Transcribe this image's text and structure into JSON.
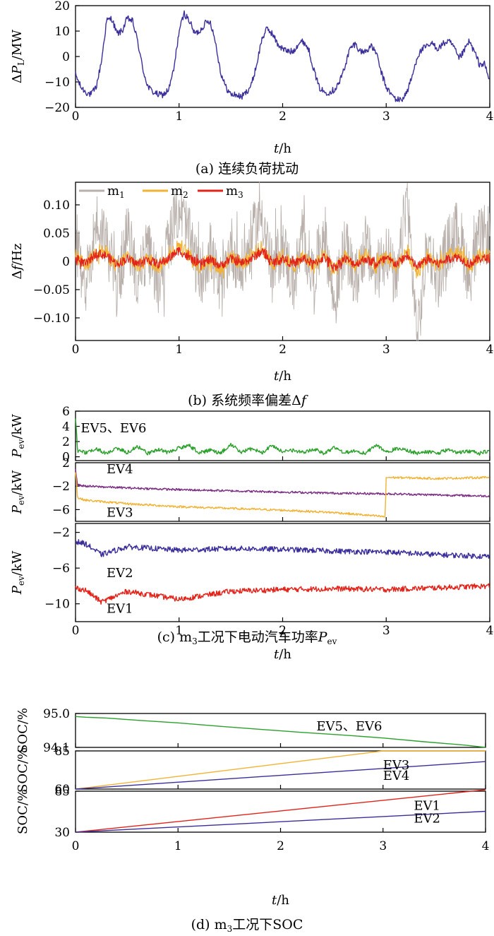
{
  "chart_data": [
    {
      "id": "a",
      "type": "line",
      "caption": "(a)  连续负荷扰动",
      "ylabel": "ΔP_L/MW",
      "xlabel": "t/h",
      "xlim": [
        0,
        4
      ],
      "ylim": [
        -20,
        20
      ],
      "xticks": [
        "0",
        "1",
        "2",
        "3",
        "4"
      ],
      "yticks": [
        "20",
        "10",
        "0",
        "−10",
        "−20"
      ],
      "series": [
        {
          "color": "#3a2f9a",
          "x": [
            0,
            0.05,
            0.1,
            0.15,
            0.2,
            0.25,
            0.3,
            0.35,
            0.4,
            0.45,
            0.5,
            0.55,
            0.6,
            0.65,
            0.7,
            0.75,
            0.8,
            0.85,
            0.9,
            0.95,
            1.0,
            1.05,
            1.1,
            1.15,
            1.2,
            1.25,
            1.3,
            1.35,
            1.4,
            1.45,
            1.5,
            1.55,
            1.6,
            1.65,
            1.7,
            1.75,
            1.8,
            1.85,
            1.9,
            1.95,
            2.0,
            2.05,
            2.1,
            2.15,
            2.2,
            2.25,
            2.3,
            2.35,
            2.4,
            2.45,
            2.5,
            2.55,
            2.6,
            2.65,
            2.7,
            2.75,
            2.8,
            2.85,
            2.9,
            2.95,
            3.0,
            3.05,
            3.1,
            3.15,
            3.2,
            3.25,
            3.3,
            3.35,
            3.4,
            3.45,
            3.5,
            3.55,
            3.6,
            3.65,
            3.7,
            3.75,
            3.8,
            3.85,
            3.9,
            3.95,
            4.0
          ],
          "y": [
            -7,
            -12,
            -14,
            -15,
            -12,
            -2,
            14,
            15,
            9,
            10,
            15,
            14,
            6,
            -5,
            -12,
            -14,
            -15,
            -15,
            -13,
            -5,
            10,
            17,
            14,
            9,
            10,
            13,
            14,
            6,
            -6,
            -12,
            -15,
            -15,
            -16,
            -14,
            -11,
            -3,
            7,
            11,
            9,
            5,
            3,
            2,
            2,
            5,
            6,
            3,
            -5,
            -12,
            -14,
            -14,
            -13,
            -10,
            -4,
            3,
            5,
            2,
            2,
            4,
            2,
            -6,
            -12,
            -15,
            -17,
            -17,
            -14,
            -8,
            0,
            3,
            4,
            5,
            3,
            5,
            6,
            4,
            -1,
            2,
            6,
            2,
            -3,
            -3,
            -10
          ]
        }
      ]
    },
    {
      "id": "b",
      "type": "line",
      "caption": "(b)  系统频率偏差Δf",
      "ylabel": "Δf/Hz",
      "xlabel": "t/h",
      "xlim": [
        0,
        4
      ],
      "ylim": [
        -0.14,
        0.14
      ],
      "xticks": [
        "0",
        "1",
        "2",
        "3",
        "4"
      ],
      "yticks": [
        "0.10",
        "0.05",
        "0",
        "−0.05",
        "−0.10"
      ],
      "legend": {
        "position": "top-left"
      },
      "series": [
        {
          "name": "m1",
          "name_main": "m",
          "name_sub": "1",
          "color": "#b9b0ab",
          "x": [
            0,
            0.1,
            0.2,
            0.3,
            0.4,
            0.5,
            0.6,
            0.7,
            0.8,
            0.9,
            1.0,
            1.1,
            1.2,
            1.3,
            1.4,
            1.5,
            1.6,
            1.7,
            1.8,
            1.9,
            2.0,
            2.1,
            2.2,
            2.3,
            2.4,
            2.5,
            2.6,
            2.7,
            2.8,
            2.9,
            3.0,
            3.1,
            3.2,
            3.3,
            3.4,
            3.5,
            3.6,
            3.7,
            3.8,
            3.9,
            4.0
          ],
          "y": [
            0.02,
            -0.04,
            0.07,
            0.04,
            -0.05,
            0.05,
            -0.03,
            0.02,
            -0.04,
            0.03,
            0.1,
            0.04,
            -0.03,
            0.02,
            -0.06,
            0.03,
            -0.02,
            0.04,
            0.09,
            -0.02,
            0.03,
            -0.04,
            0.04,
            -0.03,
            0.06,
            -0.08,
            0.03,
            -0.04,
            0.03,
            -0.03,
            0.03,
            -0.05,
            0.12,
            -0.14,
            0.03,
            -0.03,
            0.03,
            0.06,
            -0.03,
            0.04,
            0.05
          ]
        },
        {
          "name": "m2",
          "name_main": "m",
          "name_sub": "2",
          "color": "#f2b233",
          "x": [
            0,
            0.1,
            0.2,
            0.3,
            0.4,
            0.5,
            0.6,
            0.7,
            0.8,
            0.9,
            1.0,
            1.1,
            1.2,
            1.3,
            1.4,
            1.5,
            1.6,
            1.7,
            1.8,
            1.9,
            2.0,
            2.1,
            2.2,
            2.3,
            2.4,
            2.5,
            2.6,
            2.7,
            2.8,
            2.9,
            3.0,
            3.1,
            3.2,
            3.3,
            3.4,
            3.5,
            3.6,
            3.7,
            3.8,
            3.9,
            4.0
          ],
          "y": [
            0.01,
            -0.01,
            0.02,
            0.015,
            -0.01,
            0.01,
            -0.01,
            0.005,
            -0.01,
            0.01,
            0.03,
            0.01,
            -0.01,
            0.005,
            -0.015,
            0.01,
            -0.005,
            0.01,
            0.025,
            -0.005,
            0.01,
            -0.01,
            0.01,
            -0.01,
            0.015,
            -0.02,
            0.01,
            -0.01,
            0.01,
            -0.01,
            0.01,
            -0.01,
            0.02,
            -0.02,
            0.01,
            -0.01,
            0.01,
            0.015,
            -0.01,
            0.01,
            0.01
          ]
        },
        {
          "name": "m3",
          "name_main": "m",
          "name_sub": "3",
          "color": "#e2231a",
          "x": [
            0,
            0.1,
            0.2,
            0.3,
            0.4,
            0.5,
            0.6,
            0.7,
            0.8,
            0.9,
            1.0,
            1.1,
            1.2,
            1.3,
            1.4,
            1.5,
            1.6,
            1.7,
            1.8,
            1.9,
            2.0,
            2.1,
            2.2,
            2.3,
            2.4,
            2.5,
            2.6,
            2.7,
            2.8,
            2.9,
            3.0,
            3.1,
            3.2,
            3.3,
            3.4,
            3.5,
            3.6,
            3.7,
            3.8,
            3.9,
            4.0
          ],
          "y": [
            0.005,
            -0.005,
            0.015,
            0.01,
            -0.005,
            0.005,
            -0.005,
            0.003,
            -0.005,
            0.005,
            0.02,
            0.005,
            -0.005,
            0.003,
            -0.008,
            0.005,
            -0.003,
            0.005,
            0.018,
            -0.003,
            0.005,
            -0.005,
            0.005,
            -0.005,
            0.008,
            -0.01,
            0.005,
            -0.005,
            0.005,
            -0.005,
            0.005,
            -0.005,
            0.01,
            -0.01,
            0.005,
            -0.005,
            0.005,
            0.008,
            -0.005,
            0.005,
            0.005
          ]
        }
      ]
    },
    {
      "id": "c1",
      "type": "line",
      "ylabel": "P_ev/kW",
      "xlim": [
        0,
        4
      ],
      "ylim": [
        -0.5,
        6
      ],
      "yticks": [
        "6",
        "4",
        "2",
        "0"
      ],
      "annotations": [
        {
          "text": "EV5、EV6",
          "x": 0.05,
          "y": 3.2
        }
      ],
      "series": [
        {
          "color": "#2ca02c",
          "x": [
            0,
            0.02,
            0.1,
            0.2,
            0.3,
            0.4,
            0.5,
            0.6,
            0.7,
            0.8,
            0.9,
            1.0,
            1.1,
            1.2,
            1.3,
            1.4,
            1.5,
            1.6,
            1.7,
            1.8,
            1.9,
            2.0,
            2.1,
            2.2,
            2.3,
            2.4,
            2.5,
            2.6,
            2.7,
            2.8,
            2.9,
            3.0,
            3.1,
            3.2,
            3.3,
            3.4,
            3.5,
            3.6,
            3.7,
            3.8,
            3.9,
            4.0
          ],
          "y": [
            5,
            0.5,
            0.3,
            0.8,
            0.2,
            0.9,
            0.3,
            1.1,
            0.2,
            0.7,
            0.3,
            0.9,
            1.2,
            0.3,
            0.6,
            0.2,
            1.4,
            0.4,
            0.8,
            0.3,
            1.3,
            0.4,
            0.6,
            0.3,
            0.8,
            0.2,
            1.0,
            0.3,
            0.5,
            0.2,
            1.3,
            0.3,
            0.9,
            0.6,
            0.2,
            0.4,
            0.2,
            0.7,
            0.3,
            0.5,
            0.2,
            0.6
          ]
        }
      ]
    },
    {
      "id": "c2",
      "type": "line",
      "ylabel": "P_ev/kW",
      "xlim": [
        0,
        4
      ],
      "ylim": [
        -8,
        2
      ],
      "yticks": [
        "2",
        "−2",
        "−6"
      ],
      "annotations": [
        {
          "text": "EV4",
          "x": 0.3,
          "y": 0.2
        },
        {
          "text": "EV3",
          "x": 0.3,
          "y": -7.2
        }
      ],
      "series": [
        {
          "name": "EV4",
          "color": "#7b2d83",
          "x": [
            0,
            0.02,
            0.1,
            0.5,
            1.0,
            1.5,
            2.0,
            2.5,
            3.0,
            3.5,
            4.0
          ],
          "y": [
            1,
            -1.8,
            -2.0,
            -2.3,
            -2.6,
            -2.8,
            -3.0,
            -3.2,
            -3.3,
            -3.5,
            -3.7
          ]
        },
        {
          "name": "EV3",
          "color": "#f2b233",
          "x": [
            0,
            0.02,
            0.1,
            0.5,
            1.0,
            1.5,
            2.0,
            2.5,
            2.98,
            2.99,
            3.0,
            3.5,
            4.0
          ],
          "y": [
            0.5,
            -4.0,
            -4.4,
            -5.0,
            -5.5,
            -5.8,
            -6.1,
            -6.5,
            -7.2,
            -7.2,
            -0.5,
            -0.7,
            -0.5
          ]
        }
      ]
    },
    {
      "id": "c3",
      "type": "line",
      "ylabel": "P_ev/kW",
      "xlabel": "t/h",
      "xlim": [
        0,
        4
      ],
      "ylim": [
        -12,
        -1
      ],
      "xticks": [
        "0",
        "1",
        "2",
        "3",
        "4"
      ],
      "yticks": [
        "−2",
        "−6",
        "−10"
      ],
      "annotations": [
        {
          "text": "EV2",
          "x": 0.3,
          "y": -7.0
        },
        {
          "text": "EV1",
          "x": 0.3,
          "y": -11.0
        }
      ],
      "series": [
        {
          "name": "EV2",
          "color": "#3a2f9a",
          "x": [
            0,
            0.1,
            0.25,
            0.5,
            1.0,
            1.5,
            2.0,
            2.5,
            3.0,
            3.5,
            4.0
          ],
          "y": [
            -3.0,
            -3.3,
            -4.5,
            -3.6,
            -4.0,
            -3.8,
            -3.9,
            -4.1,
            -4.2,
            -4.5,
            -4.7
          ]
        },
        {
          "name": "EV1",
          "color": "#e2231a",
          "x": [
            0,
            0.1,
            0.25,
            0.5,
            1.0,
            1.5,
            2.0,
            2.5,
            3.0,
            3.5,
            4.0
          ],
          "y": [
            -8.2,
            -8.5,
            -9.8,
            -8.6,
            -9.5,
            -8.6,
            -8.4,
            -8.3,
            -8.4,
            -8.2,
            -8.0
          ]
        }
      ]
    },
    {
      "id": "d1",
      "type": "line",
      "caption": "(c)  m₃工况下电动汽车功率P_ev",
      "caption_parts": {
        "a": "(c)  m",
        "sub": "3",
        "b": "工况下电动汽车功率",
        "it": "P",
        "itsub": "ev"
      },
      "ylabel": "SOC/%",
      "xlim": [
        0,
        4
      ],
      "ylim": [
        94.1,
        95.0
      ],
      "yticks": [
        "95.0",
        "94.1"
      ],
      "annotations": [
        {
          "text": "EV5、EV6",
          "x": 2.35,
          "y": 94.55
        }
      ],
      "series": [
        {
          "color": "#2ca02c",
          "x": [
            0,
            0.1,
            0.3,
            0.6,
            1.0,
            1.4,
            1.8,
            2.2,
            2.6,
            3.0,
            3.4,
            3.8,
            4.0
          ],
          "y": [
            94.92,
            94.9,
            94.88,
            94.82,
            94.75,
            94.66,
            94.58,
            94.5,
            94.43,
            94.35,
            94.25,
            94.16,
            94.1
          ]
        }
      ]
    },
    {
      "id": "d2",
      "type": "line",
      "ylabel": "SOC/%",
      "xlim": [
        0,
        4
      ],
      "ylim": [
        60,
        85
      ],
      "yticks": [
        "85",
        "60"
      ],
      "annotations": [
        {
          "text": "EV3",
          "x": 3.0,
          "y": 73
        },
        {
          "text": "EV4",
          "x": 3.0,
          "y": 66
        }
      ],
      "series": [
        {
          "name": "EV3",
          "color": "#f2b233",
          "x": [
            0,
            3.0,
            4.0
          ],
          "y": [
            60,
            85,
            85
          ]
        },
        {
          "name": "EV4",
          "color": "#3a2f9a",
          "x": [
            0,
            4.0
          ],
          "y": [
            60,
            78
          ]
        }
      ]
    },
    {
      "id": "d3",
      "type": "line",
      "caption": "(d)  m₃工况下SOC",
      "caption_parts": {
        "a": "(d)  m",
        "sub": "3",
        "b": "工况下SOC"
      },
      "ylabel": "SOC/%",
      "xlabel": "t/h",
      "xlim": [
        0,
        4
      ],
      "ylim": [
        30,
        85
      ],
      "xticks": [
        "0",
        "1",
        "2",
        "3",
        "4"
      ],
      "yticks": [
        "85",
        "30"
      ],
      "annotations": [
        {
          "text": "EV1",
          "x": 3.3,
          "y": 60
        },
        {
          "text": "EV2",
          "x": 3.3,
          "y": 43
        }
      ],
      "series": [
        {
          "name": "EV1",
          "color": "#e2231a",
          "x": [
            0,
            4.0
          ],
          "y": [
            30,
            87
          ]
        },
        {
          "name": "EV2",
          "color": "#3a2f9a",
          "x": [
            0,
            4.0
          ],
          "y": [
            30,
            58
          ]
        }
      ]
    }
  ]
}
